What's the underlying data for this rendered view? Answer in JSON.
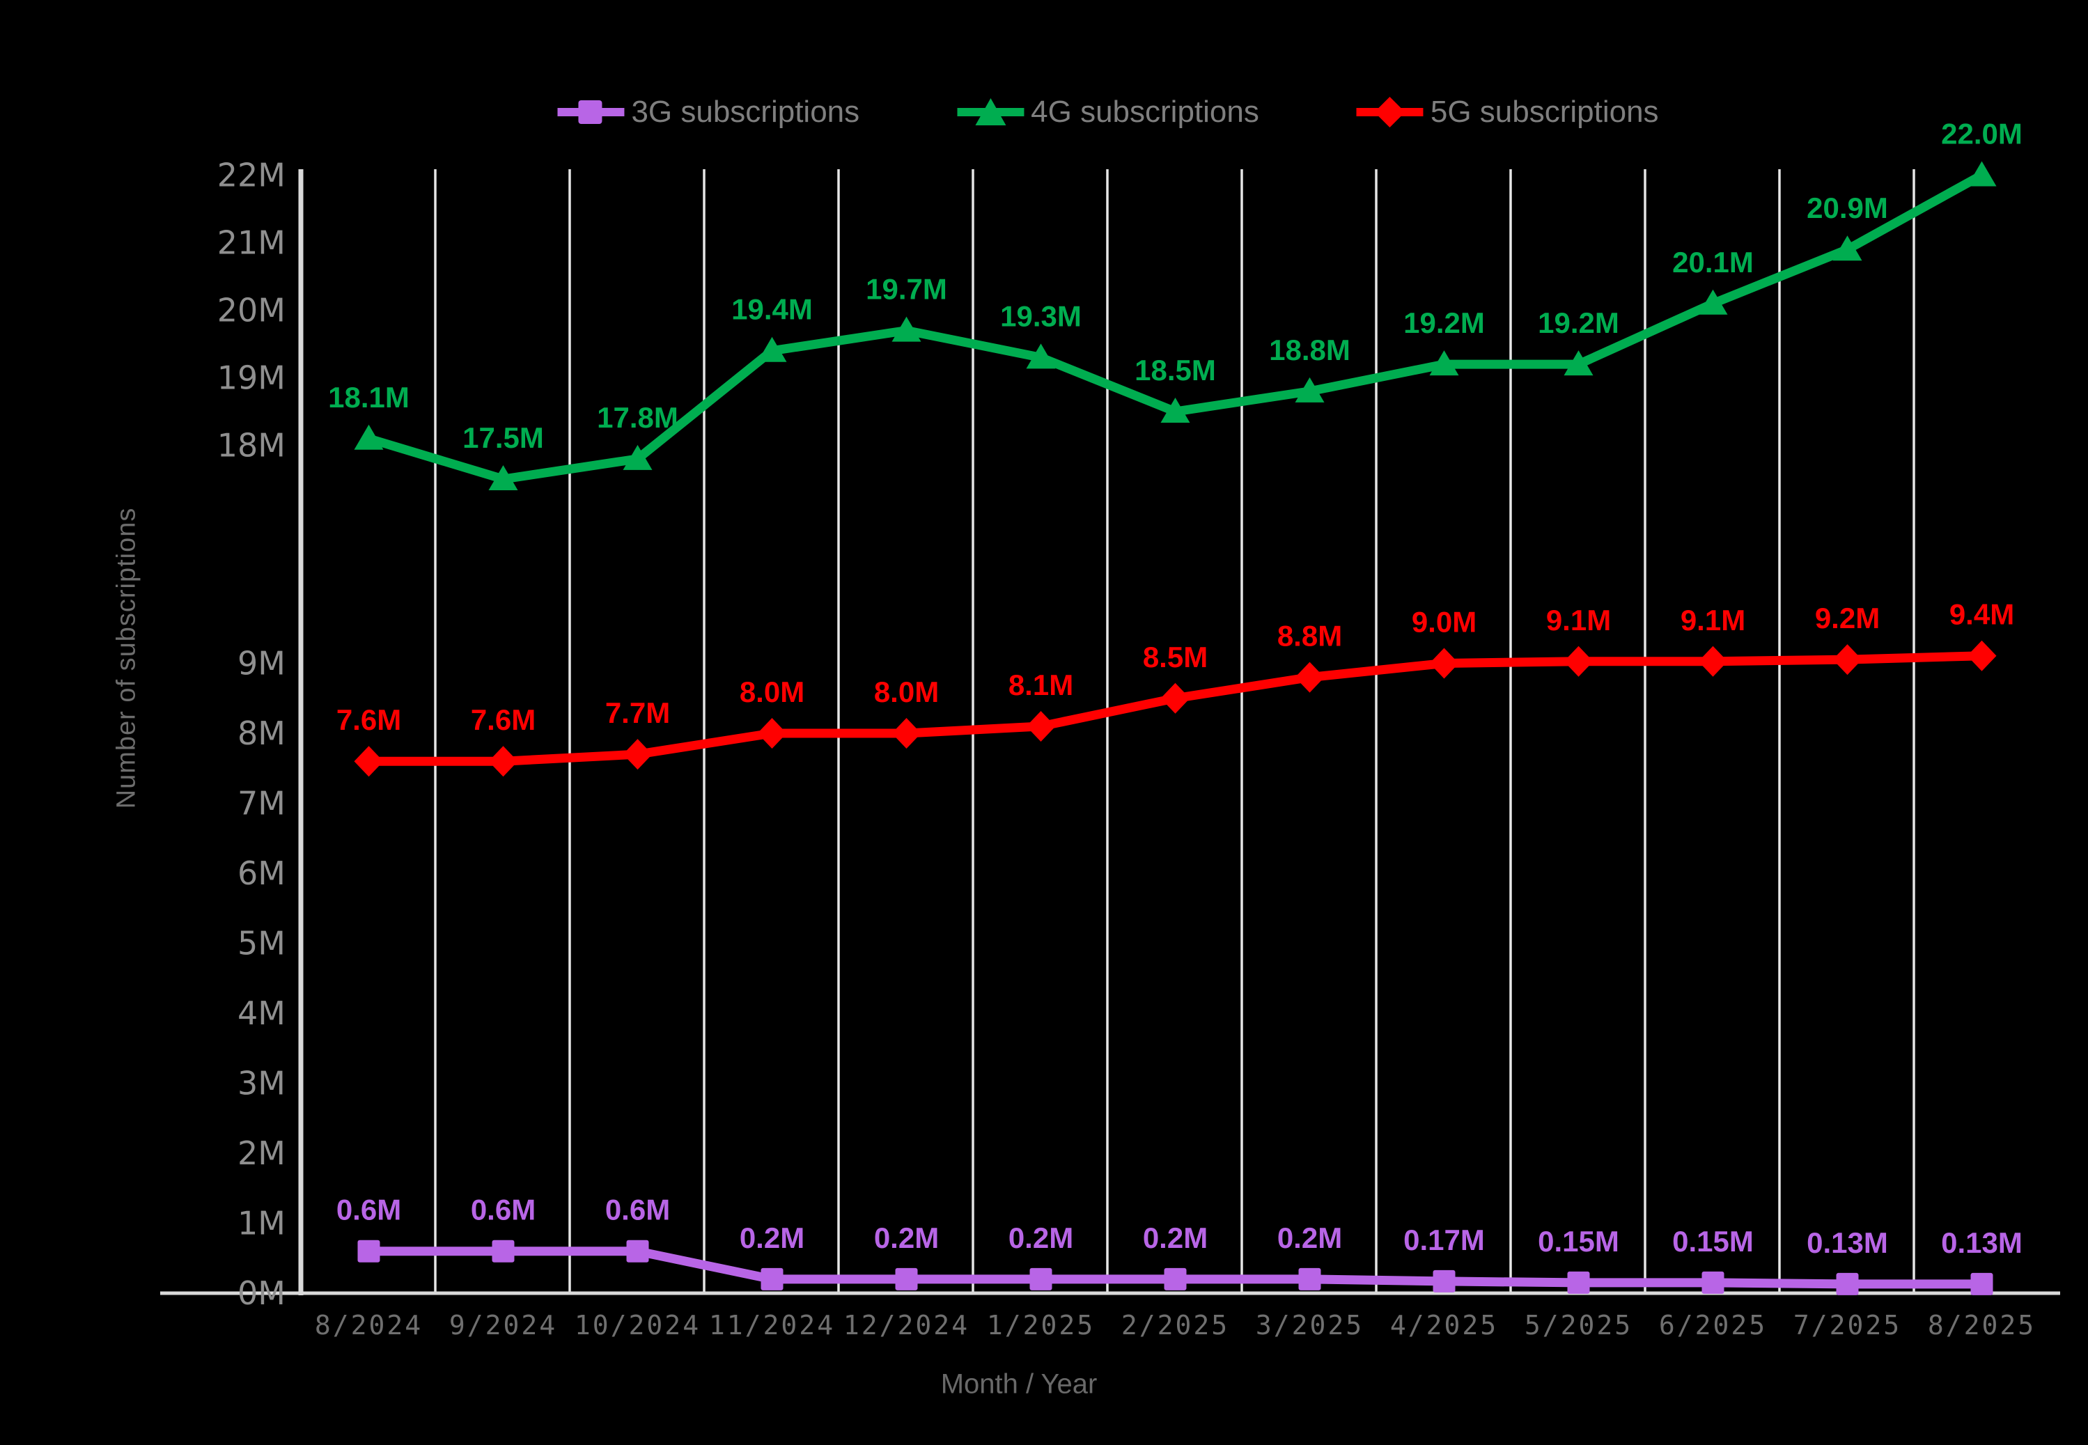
{
  "chart_data": {
    "type": "line",
    "title": "",
    "xlabel": "Month / Year",
    "ylabel": "Number of subscriptions",
    "categories": [
      "8/2024",
      "9/2024",
      "10/2024",
      "11/2024",
      "12/2024",
      "1/2025",
      "2/2025",
      "3/2025",
      "4/2025",
      "5/2025",
      "6/2025",
      "7/2025",
      "8/2025"
    ],
    "series": [
      {
        "name": "3G subscriptions",
        "color": "#b865e6",
        "marker": "square",
        "values": [
          0.6,
          0.6,
          0.6,
          0.2,
          0.2,
          0.2,
          0.2,
          0.2,
          0.17,
          0.15,
          0.15,
          0.13,
          0.13
        ],
        "labels": [
          "0.6M",
          "0.6M",
          "0.6M",
          "0.2M",
          "0.2M",
          "0.2M",
          "0.2M",
          "0.2M",
          "0.17M",
          "0.15M",
          "0.15M",
          "0.13M",
          "0.13M"
        ]
      },
      {
        "name": "4G subscriptions",
        "color": "#00ad50",
        "marker": "triangle",
        "values": [
          18.1,
          17.5,
          17.8,
          19.4,
          19.7,
          19.3,
          18.5,
          18.8,
          19.2,
          19.2,
          20.1,
          20.9,
          22.0
        ],
        "labels": [
          "18.1M",
          "17.5M",
          "17.8M",
          "19.4M",
          "19.7M",
          "19.3M",
          "18.5M",
          "18.8M",
          "19.2M",
          "19.2M",
          "20.1M",
          "20.9M",
          "22.0M"
        ]
      },
      {
        "name": "5G subscriptions",
        "color": "#ff0000",
        "marker": "diamond",
        "values": [
          7.6,
          7.6,
          7.7,
          8.0,
          8.0,
          8.1,
          8.5,
          8.8,
          9.0,
          9.1,
          9.1,
          9.2,
          9.4
        ],
        "labels": [
          "7.6M",
          "7.6M",
          "7.7M",
          "8.0M",
          "8.0M",
          "8.1M",
          "8.5M",
          "8.8M",
          "9.0M",
          "9.1M",
          "9.1M",
          "9.2M",
          "9.4M"
        ]
      }
    ],
    "y_ticks": [
      {
        "v": 0,
        "label": "0M"
      },
      {
        "v": 1,
        "label": "1M"
      },
      {
        "v": 2,
        "label": "2M"
      },
      {
        "v": 3,
        "label": "3M"
      },
      {
        "v": 4,
        "label": "4M"
      },
      {
        "v": 5,
        "label": "5M"
      },
      {
        "v": 6,
        "label": "6M"
      },
      {
        "v": 7,
        "label": "7M"
      },
      {
        "v": 8,
        "label": "8M"
      },
      {
        "v": 9,
        "label": "9M"
      },
      {
        "v": 18,
        "label": "18M"
      },
      {
        "v": 19,
        "label": "19M"
      },
      {
        "v": 20,
        "label": "20M"
      },
      {
        "v": 21,
        "label": "21M"
      },
      {
        "v": 22,
        "label": "22M"
      }
    ],
    "ylim": [
      0,
      22
    ],
    "y_axis_break": "axis is discontinuous: values 9M-18M are compressed",
    "y_scale_anchors": [
      [
        0,
        1857
      ],
      [
        9,
        952.5
      ],
      [
        17,
        736.5
      ],
      [
        22,
        251.5
      ]
    ],
    "grid": "vertical-only",
    "legend_position": "top-center",
    "colors": {
      "background": "#000000",
      "axis_line": "#d9d9d9",
      "gridline": "#e6e6e6",
      "y_tick_text": "#8f8f8f",
      "x_tick_text": "#6f6f6f",
      "legend_text": "#7f7f7f",
      "axis_title_text": "#696969"
    }
  }
}
